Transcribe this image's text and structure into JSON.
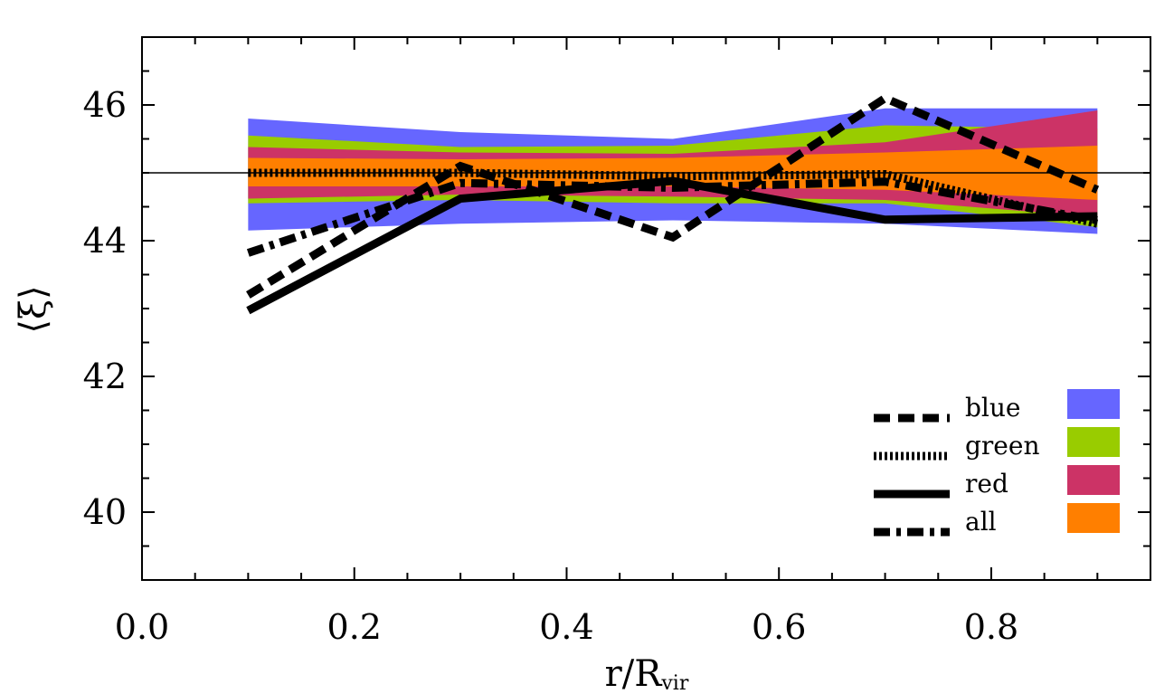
{
  "chart_data": {
    "type": "line",
    "xlabel_main": "r/R",
    "xlabel_sub": "vir",
    "ylabel": "⟨ξ⟩",
    "xlim": [
      0.0,
      0.95
    ],
    "ylim": [
      39.0,
      47.0
    ],
    "x_ticks": [
      0.0,
      0.2,
      0.4,
      0.6,
      0.8
    ],
    "x_tick_labels": [
      "0.0",
      "0.2",
      "0.4",
      "0.6",
      "0.8"
    ],
    "y_ticks": [
      40,
      42,
      44,
      46
    ],
    "y_tick_labels": [
      "40",
      "42",
      "44",
      "46"
    ],
    "reference_line_y": 45.0,
    "x": [
      0.1,
      0.3,
      0.5,
      0.7,
      0.9
    ],
    "series": [
      {
        "name": "blue",
        "style": "dashed",
        "values": [
          43.2,
          45.1,
          44.05,
          46.1,
          44.75
        ]
      },
      {
        "name": "green",
        "style": "dotted",
        "values": [
          45.0,
          45.0,
          44.95,
          44.98,
          44.25
        ]
      },
      {
        "name": "red",
        "style": "solid",
        "values": [
          42.97,
          44.62,
          44.88,
          44.31,
          44.36
        ]
      },
      {
        "name": "all",
        "style": "dashdot",
        "values": [
          43.82,
          44.85,
          44.78,
          44.87,
          44.3
        ]
      }
    ],
    "bands": [
      {
        "name": "blue",
        "color": "#6666ff",
        "upper": [
          45.8,
          45.6,
          45.5,
          45.95,
          45.95
        ],
        "lower": [
          44.15,
          44.25,
          44.3,
          44.25,
          44.1
        ]
      },
      {
        "name": "green",
        "color": "#99cc00",
        "upper": [
          45.55,
          45.38,
          45.4,
          45.7,
          45.65
        ],
        "lower": [
          44.55,
          44.6,
          44.55,
          44.55,
          44.2
        ]
      },
      {
        "name": "red",
        "color": "#cc3366",
        "upper": [
          45.38,
          45.3,
          45.28,
          45.45,
          45.92
        ],
        "lower": [
          44.62,
          44.68,
          44.65,
          44.6,
          44.35
        ]
      },
      {
        "name": "all",
        "color": "#ff7f00",
        "upper": [
          45.22,
          45.2,
          45.22,
          45.3,
          45.4
        ],
        "lower": [
          44.8,
          44.8,
          44.8,
          44.75,
          44.6
        ]
      }
    ],
    "legend": {
      "placement": "lower-right",
      "entries": [
        {
          "label": "blue",
          "style": "dashed",
          "color": "#6666ff"
        },
        {
          "label": "green",
          "style": "dotted",
          "color": "#99cc00"
        },
        {
          "label": "red",
          "style": "solid",
          "color": "#cc3366"
        },
        {
          "label": "all",
          "style": "dashdot",
          "color": "#ff7f00"
        }
      ]
    },
    "grid": false
  }
}
